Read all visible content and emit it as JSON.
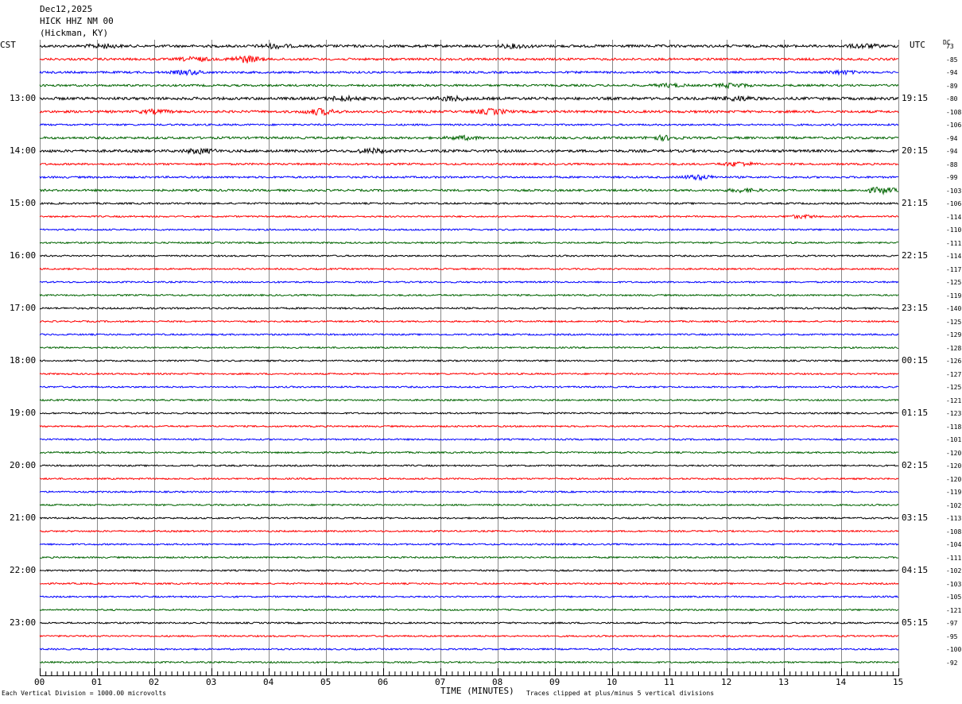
{
  "header": {
    "date": "Dec12,2025",
    "station": "HICK HHZ NM 00",
    "location": "(Hickman, KY)"
  },
  "left_tz": "CST",
  "right_tz": "UTC",
  "dc_label": "DC",
  "footer": {
    "scale_note": "Each Vertical Division = 1000.00 microvolts",
    "xlabel": "TIME (MINUTES)",
    "clip_note": "Traces clipped at plus/minus 5 vertical divisions"
  },
  "colors": {
    "trace_cycle": [
      "#000000",
      "#ff0000",
      "#0000ff",
      "#006400"
    ],
    "grid": "#888888",
    "axis": "#000000"
  },
  "chart_data": {
    "type": "line",
    "title": "HICK HHZ NM 00",
    "xlabel": "TIME (MINUTES)",
    "xlim": [
      0,
      15
    ],
    "x_ticks": [
      "00",
      "01",
      "02",
      "03",
      "04",
      "05",
      "06",
      "07",
      "08",
      "09",
      "10",
      "11",
      "12",
      "13",
      "14",
      "15"
    ],
    "trace_count": 48,
    "minutes_per_trace": 15,
    "hour_labels_left": [
      "13:00",
      "14:00",
      "15:00",
      "16:00",
      "17:00",
      "18:00",
      "19:00",
      "20:00",
      "21:00",
      "22:00",
      "23:00"
    ],
    "hour_labels_right": [
      "19:15",
      "20:15",
      "21:15",
      "22:15",
      "23:15",
      "00:15",
      "01:15",
      "02:15",
      "03:15",
      "04:15",
      "05:15"
    ],
    "dc_offsets": [
      73,
      -85,
      -94,
      -89,
      -80,
      -108,
      -106,
      -94,
      -94,
      -88,
      -99,
      -103,
      -106,
      -114,
      -110,
      -111,
      -114,
      -117,
      -125,
      -119,
      -140,
      -125,
      -129,
      -128,
      -126,
      -127,
      -125,
      -121,
      -123,
      -118,
      -101,
      -120,
      -120,
      -120,
      -119,
      -102,
      -113,
      -108,
      -104,
      -111,
      -102,
      -103,
      -105,
      -121,
      -97,
      -95,
      -100,
      -92
    ],
    "noise_levels": [
      1.6,
      1.4,
      1.3,
      1.3,
      1.7,
      1.5,
      1.1,
      1.4,
      1.6,
      1.2,
      1.2,
      1.3,
      1.1,
      1.0,
      1.0,
      1.0,
      1.0,
      1.0,
      1.0,
      1.0,
      1.1,
      1.0,
      1.0,
      1.0,
      1.0,
      1.0,
      1.0,
      1.0,
      1.0,
      1.0,
      1.0,
      1.0,
      1.0,
      1.0,
      1.0,
      1.0,
      1.0,
      1.0,
      1.0,
      1.0,
      1.0,
      1.0,
      1.0,
      1.0,
      1.0,
      1.0,
      1.0,
      1.0
    ],
    "events": [
      {
        "trace": 0,
        "minute": 1.1,
        "amp": 2.2
      },
      {
        "trace": 0,
        "minute": 4.1,
        "amp": 2.2
      },
      {
        "trace": 0,
        "minute": 8.3,
        "amp": 2.0
      },
      {
        "trace": 0,
        "minute": 14.4,
        "amp": 2.2
      },
      {
        "trace": 1,
        "minute": 3.6,
        "amp": 4.0
      },
      {
        "trace": 1,
        "minute": 2.7,
        "amp": 2.4
      },
      {
        "trace": 2,
        "minute": 2.6,
        "amp": 2.6
      },
      {
        "trace": 2,
        "minute": 14.0,
        "amp": 2.0
      },
      {
        "trace": 3,
        "minute": 12.1,
        "amp": 2.4
      },
      {
        "trace": 3,
        "minute": 11.0,
        "amp": 1.8
      },
      {
        "trace": 4,
        "minute": 5.3,
        "amp": 2.4
      },
      {
        "trace": 4,
        "minute": 7.2,
        "amp": 2.4
      },
      {
        "trace": 4,
        "minute": 12.2,
        "amp": 2.4
      },
      {
        "trace": 5,
        "minute": 4.9,
        "amp": 3.5
      },
      {
        "trace": 5,
        "minute": 7.9,
        "amp": 3.0
      },
      {
        "trace": 5,
        "minute": 2.0,
        "amp": 2.0
      },
      {
        "trace": 7,
        "minute": 7.4,
        "amp": 2.0
      },
      {
        "trace": 7,
        "minute": 10.9,
        "amp": 2.4
      },
      {
        "trace": 8,
        "minute": 2.8,
        "amp": 2.6
      },
      {
        "trace": 8,
        "minute": 5.8,
        "amp": 2.4
      },
      {
        "trace": 9,
        "minute": 12.2,
        "amp": 2.6
      },
      {
        "trace": 10,
        "minute": 11.5,
        "amp": 2.6
      },
      {
        "trace": 11,
        "minute": 14.7,
        "amp": 3.5
      },
      {
        "trace": 11,
        "minute": 12.3,
        "amp": 2.0
      },
      {
        "trace": 13,
        "minute": 13.3,
        "amp": 1.8
      }
    ]
  }
}
